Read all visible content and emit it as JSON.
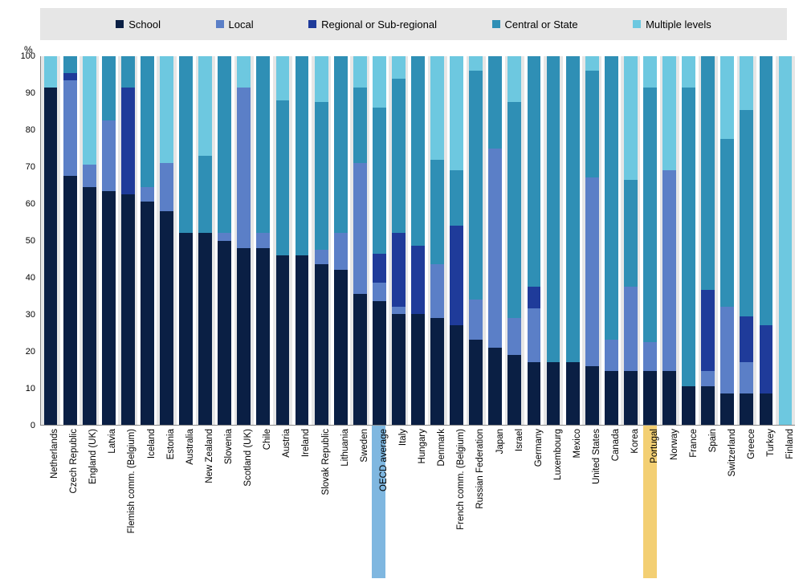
{
  "chart": {
    "type": "stacked-bar",
    "y_unit": "%",
    "ylim": [
      0,
      100
    ],
    "ytick_step": 10,
    "background_color": "#ffffff",
    "alt_band_color": "#e6e6e6",
    "axis_color": "#888888",
    "label_fontsize": 11.5,
    "highlight_colors": {
      "OECD average": "#7fb7e0",
      "Portugal": "#f3cf73"
    },
    "series": [
      {
        "key": "school",
        "label": "School",
        "color": "#0a1f44"
      },
      {
        "key": "local",
        "label": "Local",
        "color": "#5b7fc7"
      },
      {
        "key": "regional",
        "label": "Regional or Sub-regional",
        "color": "#1f3b9a"
      },
      {
        "key": "central",
        "label": "Central or State",
        "color": "#2f8fb5"
      },
      {
        "key": "multiple",
        "label": "Multiple levels",
        "color": "#6dc8e0"
      }
    ],
    "data": [
      {
        "label": "Netherlands",
        "school": 91.5,
        "local": 0,
        "regional": 0,
        "central": 0,
        "multiple": 8.5
      },
      {
        "label": "Czech Republic",
        "school": 67.5,
        "local": 26,
        "regional": 2,
        "central": 4.5,
        "multiple": 0
      },
      {
        "label": "England (UK)",
        "school": 64.5,
        "local": 6,
        "regional": 0,
        "central": 0,
        "multiple": 29.5
      },
      {
        "label": "Latvia",
        "school": 63.5,
        "local": 19,
        "regional": 0,
        "central": 17.5,
        "multiple": 0
      },
      {
        "label": "Flemish comm. (Belgium)",
        "school": 62.5,
        "local": 0,
        "regional": 29,
        "central": 8.5,
        "multiple": 0
      },
      {
        "label": "Iceland",
        "school": 60.5,
        "local": 4,
        "regional": 0,
        "central": 35.5,
        "multiple": 0
      },
      {
        "label": "Estonia",
        "school": 58,
        "local": 13,
        "regional": 0,
        "central": 0,
        "multiple": 29
      },
      {
        "label": "Australia",
        "school": 52,
        "local": 0,
        "regional": 0,
        "central": 48,
        "multiple": 0
      },
      {
        "label": "New Zealand",
        "school": 52,
        "local": 0,
        "regional": 0,
        "central": 21,
        "multiple": 27
      },
      {
        "label": "Slovenia",
        "school": 50,
        "local": 2,
        "regional": 0,
        "central": 48,
        "multiple": 0
      },
      {
        "label": "Scotland (UK)",
        "school": 48,
        "local": 43.5,
        "regional": 0,
        "central": 0,
        "multiple": 8.5
      },
      {
        "label": "Chile",
        "school": 48,
        "local": 4,
        "regional": 0,
        "central": 48,
        "multiple": 0
      },
      {
        "label": "Austria",
        "school": 46,
        "local": 0,
        "regional": 0,
        "central": 42,
        "multiple": 12
      },
      {
        "label": "Ireland",
        "school": 46,
        "local": 0,
        "regional": 0,
        "central": 54,
        "multiple": 0
      },
      {
        "label": "Slovak Republic",
        "school": 43.5,
        "local": 4,
        "regional": 0,
        "central": 40,
        "multiple": 12.5
      },
      {
        "label": "Lithuania",
        "school": 42,
        "local": 10,
        "regional": 0,
        "central": 48,
        "multiple": 0
      },
      {
        "label": "Sweden",
        "school": 35.5,
        "local": 35.5,
        "regional": 0,
        "central": 20.5,
        "multiple": 8.5
      },
      {
        "label": "OECD average",
        "school": 33.5,
        "local": 5,
        "regional": 8,
        "central": 39.5,
        "multiple": 14
      },
      {
        "label": "Italy",
        "school": 30,
        "local": 2,
        "regional": 20,
        "central": 42,
        "multiple": 6
      },
      {
        "label": "Hungary",
        "school": 30,
        "local": 0,
        "regional": 18.5,
        "central": 51.5,
        "multiple": 0
      },
      {
        "label": "Denmark",
        "school": 29,
        "local": 14.5,
        "regional": 0,
        "central": 28.5,
        "multiple": 28
      },
      {
        "label": "French comm. (Belgium)",
        "school": 27,
        "local": 0,
        "regional": 27,
        "central": 15,
        "multiple": 31
      },
      {
        "label": "Russian Federation",
        "school": 23,
        "local": 11,
        "regional": 0,
        "central": 62,
        "multiple": 4
      },
      {
        "label": "Japan",
        "school": 21,
        "local": 54,
        "regional": 0,
        "central": 25,
        "multiple": 0
      },
      {
        "label": "Israel",
        "school": 19,
        "local": 10,
        "regional": 0,
        "central": 58.5,
        "multiple": 12.5
      },
      {
        "label": "Germany",
        "school": 17,
        "local": 14.5,
        "regional": 6,
        "central": 62.5,
        "multiple": 0
      },
      {
        "label": "Luxembourg",
        "school": 17,
        "local": 0,
        "regional": 0,
        "central": 83,
        "multiple": 0
      },
      {
        "label": "Mexico",
        "school": 17,
        "local": 0,
        "regional": 0,
        "central": 83,
        "multiple": 0
      },
      {
        "label": "United States",
        "school": 16,
        "local": 51,
        "regional": 0,
        "central": 29,
        "multiple": 4
      },
      {
        "label": "Canada",
        "school": 14.5,
        "local": 8.5,
        "regional": 0,
        "central": 77,
        "multiple": 0
      },
      {
        "label": "Korea",
        "school": 14.5,
        "local": 23,
        "regional": 0,
        "central": 29,
        "multiple": 33.5
      },
      {
        "label": "Portugal",
        "school": 14.5,
        "local": 8,
        "regional": 0,
        "central": 69,
        "multiple": 8.5
      },
      {
        "label": "Norway",
        "school": 14.5,
        "local": 54.5,
        "regional": 0,
        "central": 0,
        "multiple": 31
      },
      {
        "label": "France",
        "school": 10.5,
        "local": 0,
        "regional": 0,
        "central": 81,
        "multiple": 8.5
      },
      {
        "label": "Spain",
        "school": 10.5,
        "local": 4,
        "regional": 22,
        "central": 63.5,
        "multiple": 0
      },
      {
        "label": "Switzerland",
        "school": 8.5,
        "local": 23.5,
        "regional": 0,
        "central": 45.5,
        "multiple": 22.5
      },
      {
        "label": "Greece",
        "school": 8.5,
        "local": 8.5,
        "regional": 12.5,
        "central": 56,
        "multiple": 14.5
      },
      {
        "label": "Turkey",
        "school": 8.5,
        "local": 0,
        "regional": 18.5,
        "central": 73,
        "multiple": 0
      },
      {
        "label": "Finland",
        "school": 0,
        "local": 0,
        "regional": 0,
        "central": 0,
        "multiple": 100
      }
    ]
  }
}
